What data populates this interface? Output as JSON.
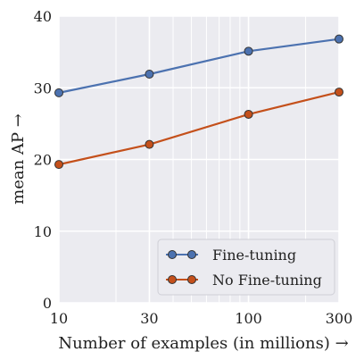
{
  "chart_data": {
    "type": "line",
    "xscale": "log",
    "x": [
      10,
      30,
      100,
      300
    ],
    "xticks": [
      10,
      30,
      100,
      300
    ],
    "xlim": [
      10,
      300
    ],
    "xlabel": "Number of examples (in millions) →",
    "ylabel": "mean AP →",
    "yticks": [
      0,
      10,
      20,
      30,
      40
    ],
    "ylim": [
      0,
      40
    ],
    "grid": true,
    "legend_position": "bottom-right",
    "background": "#ebebf0",
    "gridcolor": "#ffffff",
    "series": [
      {
        "name": "Fine-tuning",
        "values": [
          29.3,
          31.9,
          35.1,
          36.8
        ],
        "color": "#4c72b0"
      },
      {
        "name": "No Fine-tuning",
        "values": [
          19.3,
          22.1,
          26.3,
          29.4
        ],
        "color": "#c4501b"
      }
    ]
  }
}
